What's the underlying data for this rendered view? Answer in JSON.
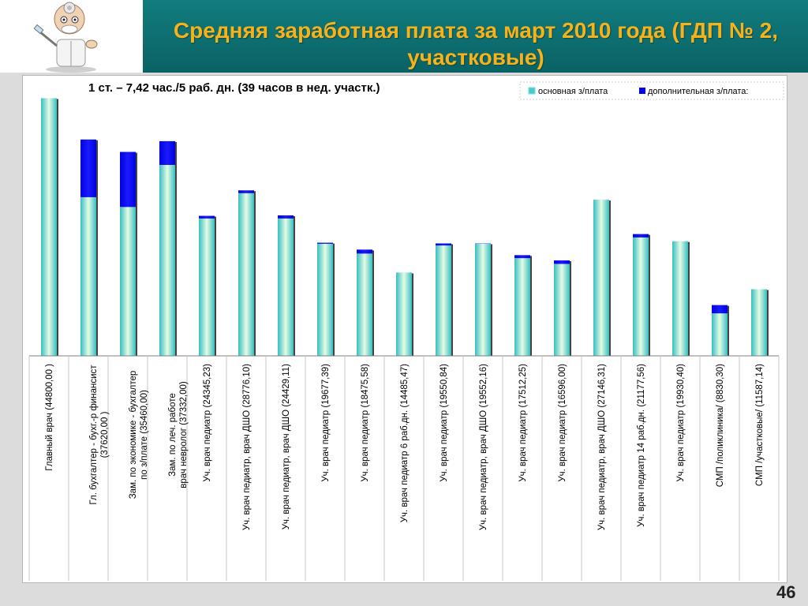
{
  "slide": {
    "title": "Средняя заработная плата за март 2010 года (ГДП № 2, участковые)",
    "page_number": "46",
    "colors": {
      "title": "#f7b21a",
      "header_bg": "#0f7475",
      "base_bar": "#44cccc",
      "extra_bar": "#0000ee"
    },
    "logo_icon": "doctor-mascot-icon"
  },
  "chart_data": {
    "type": "bar",
    "stacked": true,
    "subtitle": "1 ст. – 7,42 час./5 раб. дн. (39 часов в нед. участк.)",
    "legend_position": "top-right",
    "grid": false,
    "ylim": [
      0,
      45000
    ],
    "categories": [
      "Главный врач (44800,00 )",
      "Гл. бухгалтер - бухг.-р финансист (37620,00 )",
      "Зам. по экономике - бухгалтер по з/плате (35460,00)",
      "Зам. по леч. работе врач невролог (37332,00)",
      "Уч. врач педиатр (24345,23)",
      "Уч. врач педиатр, врач ДШО (28776,10)",
      "Уч. врач педиатр, врач ДШО (24429,11)",
      "Уч. врач педиатр (19677,39)",
      "Уч. врач педиатр (18475,58)",
      "Уч. врач педиатр 6 раб.дн. (14485,47)",
      "Уч. врач педиатр (19550,84)",
      "Уч. врач педиатр, врач ДШО (19552,16)",
      "Уч. врач педиатр (17512,25)",
      "Уч. врач педиатр (16596,00)",
      "Уч. врач педиатр, врач ДШО (27146,31)",
      "Уч. врач педиатр 14 раб.дн. (21177,56)",
      "Уч. врач педиатр (19930,40)",
      "СМП /поликлиника/ (8830,30)",
      "СМП /участковые/ (11587,14)"
    ],
    "category_lines": [
      [
        "Главный врач (44800,00 )"
      ],
      [
        "Гл. бухгалтер - бухг.-р финансист",
        "(37620,00 )"
      ],
      [
        "Зам. по экономике - бухгалтер",
        "по з/плате (35460,00)"
      ],
      [
        "Зам. по леч. работе",
        "врач невролог (37332,00)"
      ],
      [
        "Уч. врач педиатр (24345,23)"
      ],
      [
        "Уч. врач педиатр, врач ДШО (28776,10)"
      ],
      [
        "Уч. врач педиатр, врач ДШО (24429,11)"
      ],
      [
        "Уч. врач педиатр (19677,39)"
      ],
      [
        "Уч. врач педиатр (18475,58)"
      ],
      [
        "Уч. врач педиатр 6 раб.дн. (14485,47)"
      ],
      [
        "Уч. врач педиатр (19550,84)"
      ],
      [
        "Уч. врач педиатр, врач ДШО (19552,16)"
      ],
      [
        "Уч. врач педиатр (17512,25)"
      ],
      [
        "Уч. врач педиатр (16596,00)"
      ],
      [
        "Уч. врач педиатр, врач ДШО (27146,31)"
      ],
      [
        "Уч. врач педиатр 14 раб.дн. (21177,56)"
      ],
      [
        "Уч. врач педиатр (19930,40)"
      ],
      [
        "СМП /поликлиника/ (8830,30)"
      ],
      [
        "СМП /участковые/ (11587,14)"
      ]
    ],
    "series": [
      {
        "name": "основная з/плата",
        "values": [
          44800,
          27600,
          25900,
          33200,
          23900,
          28300,
          23900,
          19500,
          17800,
          14485,
          19200,
          19500,
          17000,
          16000,
          27146,
          20600,
          19930,
          7400,
          11587
        ]
      },
      {
        "name": "дополнительная з/плата:",
        "values": [
          0,
          10020,
          9560,
          4132,
          445,
          476,
          529,
          177,
          676,
          0,
          351,
          52,
          512,
          596,
          0,
          578,
          0,
          1430,
          0
        ]
      }
    ]
  }
}
